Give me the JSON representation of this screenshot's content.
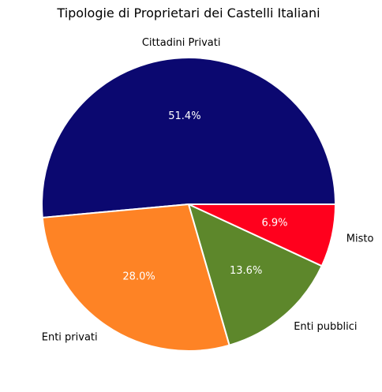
{
  "chart_data": {
    "type": "pie",
    "title": "Tipologie di Proprietari dei Castelli Italiani",
    "labels": [
      "Cittadini Privati",
      "Enti privati",
      "Enti pubblici",
      "Misto"
    ],
    "values": [
      51.4,
      28.0,
      13.6,
      6.9
    ],
    "percent_labels": [
      "51.4%",
      "28.0%",
      "13.6%",
      "6.9%"
    ],
    "colors": [
      "#0b0870",
      "#fe8325",
      "#5d872b",
      "#ff001d"
    ],
    "start_angle_deg": 0,
    "direction": "counterclockwise",
    "legend": "none"
  }
}
